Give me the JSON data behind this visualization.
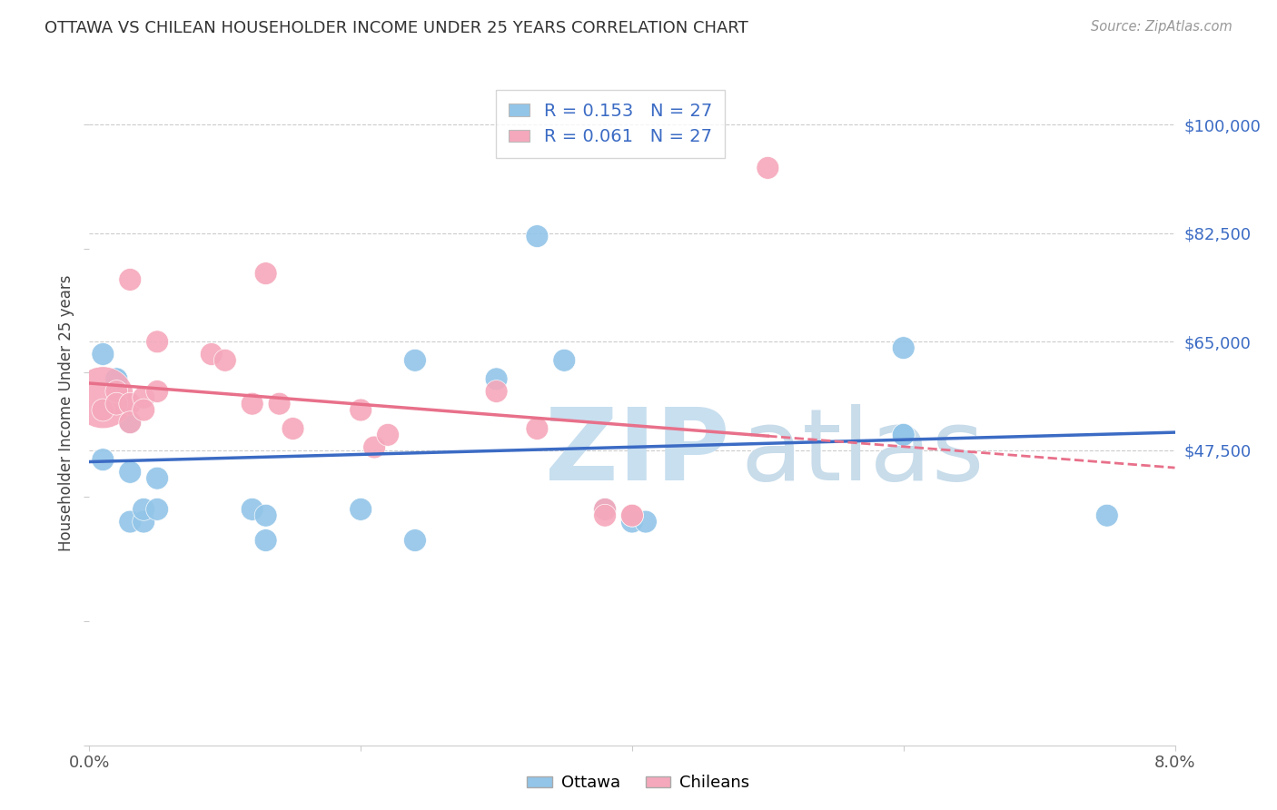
{
  "title": "OTTAWA VS CHILEAN HOUSEHOLDER INCOME UNDER 25 YEARS CORRELATION CHART",
  "source": "Source: ZipAtlas.com",
  "ylabel": "Householder Income Under 25 years",
  "xlim": [
    0.0,
    0.08
  ],
  "ylim": [
    0,
    107000
  ],
  "xticks": [
    0.0,
    0.02,
    0.04,
    0.06,
    0.08
  ],
  "xticklabels": [
    "0.0%",
    "",
    "",
    "",
    "8.0%"
  ],
  "ytick_positions": [
    47500,
    65000,
    82500,
    100000
  ],
  "ytick_labels": [
    "$47,500",
    "$65,000",
    "$82,500",
    "$100,000"
  ],
  "background_color": "#ffffff",
  "grid_color": "#cccccc",
  "ottawa_color": "#92C5E8",
  "chilean_color": "#F5A8BB",
  "ottawa_line_color": "#3B6BC4",
  "chilean_line_color": "#E8708A",
  "r_ottawa": 0.153,
  "r_chilean": 0.061,
  "n_ottawa": 27,
  "n_chilean": 27,
  "ottawa_x": [
    0.001,
    0.001,
    0.002,
    0.002,
    0.003,
    0.003,
    0.003,
    0.004,
    0.004,
    0.005,
    0.005,
    0.012,
    0.013,
    0.013,
    0.02,
    0.024,
    0.024,
    0.03,
    0.033,
    0.035,
    0.038,
    0.04,
    0.041,
    0.06,
    0.06,
    0.06,
    0.075
  ],
  "ottawa_y": [
    46000,
    63000,
    59000,
    59000,
    52000,
    44000,
    36000,
    36000,
    38000,
    38000,
    43000,
    38000,
    37000,
    33000,
    38000,
    62000,
    33000,
    59000,
    82000,
    62000,
    38000,
    36000,
    36000,
    64000,
    50000,
    50000,
    37000
  ],
  "ottawa_size": [
    40,
    40,
    40,
    40,
    40,
    40,
    40,
    40,
    40,
    40,
    40,
    40,
    40,
    40,
    40,
    40,
    40,
    40,
    40,
    40,
    40,
    40,
    40,
    40,
    40,
    40,
    40
  ],
  "chilean_x": [
    0.001,
    0.001,
    0.002,
    0.002,
    0.003,
    0.003,
    0.003,
    0.004,
    0.004,
    0.005,
    0.005,
    0.009,
    0.01,
    0.012,
    0.013,
    0.014,
    0.015,
    0.02,
    0.021,
    0.022,
    0.03,
    0.033,
    0.038,
    0.038,
    0.04,
    0.04,
    0.05
  ],
  "chilean_y": [
    56000,
    54000,
    57000,
    55000,
    75000,
    55000,
    52000,
    56000,
    54000,
    65000,
    57000,
    63000,
    62000,
    55000,
    76000,
    55000,
    51000,
    54000,
    48000,
    50000,
    57000,
    51000,
    38000,
    37000,
    37000,
    37000,
    93000
  ],
  "chilean_size": [
    300,
    40,
    40,
    40,
    40,
    40,
    40,
    40,
    40,
    40,
    40,
    40,
    40,
    40,
    40,
    40,
    40,
    40,
    40,
    40,
    40,
    40,
    40,
    40,
    40,
    40,
    40
  ],
  "watermark_zip": "ZIP",
  "watermark_atlas": "atlas",
  "watermark_color_zip": "#C8DFEF",
  "watermark_color_atlas": "#C8DCEA",
  "watermark_fontsize": 80
}
